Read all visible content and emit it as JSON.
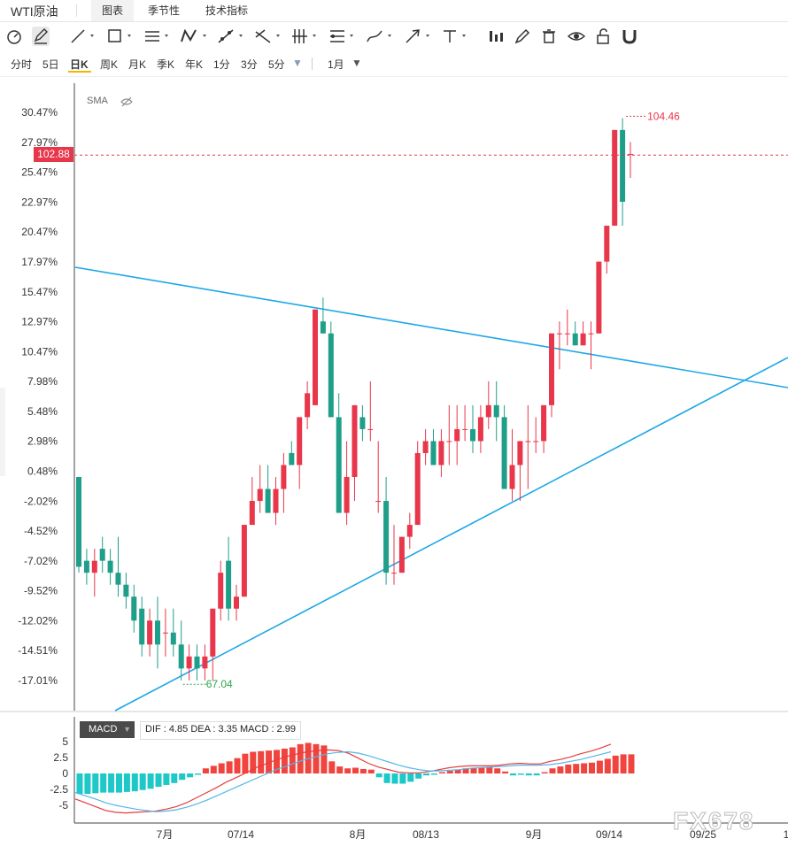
{
  "header": {
    "title": "WTI原油",
    "tabs": [
      "图表",
      "季节性",
      "技术指标"
    ],
    "active_tab": 0
  },
  "toolbar": {
    "icons": [
      "gauge-icon",
      "pen-icon",
      "line-icon",
      "rect-icon",
      "parallel-lines-icon",
      "zigzag-icon",
      "ray-icon",
      "cross-lines-icon",
      "vertical-lines-icon",
      "fib-icon",
      "brush-icon",
      "arrow-icon",
      "text-icon",
      "bar-chart-icon",
      "pencil-icon",
      "trash-icon",
      "eye-icon",
      "unlock-icon",
      "magnet-icon"
    ]
  },
  "periods": {
    "items": [
      "分时",
      "5日",
      "日K",
      "周K",
      "月K",
      "季K",
      "年K",
      "1分",
      "3分",
      "5分",
      "1月"
    ],
    "active": "日K"
  },
  "indicator": {
    "sma_label": "SMA",
    "macd_label": "MACD",
    "macd_values": "DIF : 4.85  DEA : 3.35  MACD : 2.99"
  },
  "price_tag": "102.88",
  "watermark": "FX678",
  "colors": {
    "up": "#e8364a",
    "down": "#1f9e89",
    "trendline": "#1ea7e6",
    "macd_pos": "#f0443f",
    "macd_neg": "#1cc8c8",
    "dif": "#e83c3c",
    "dea": "#52b7e8",
    "price_line": "#e8364a",
    "low_mark": "#2aa84a"
  },
  "chart_data": {
    "type": "candlestick",
    "y_axis_labels": [
      "30.47%",
      "27.97%",
      "25.47%",
      "22.97%",
      "20.47%",
      "17.97%",
      "15.47%",
      "12.97%",
      "10.47%",
      "7.98%",
      "5.48%",
      "2.98%",
      "0.48%",
      "-2.02%",
      "-4.52%",
      "-7.02%",
      "-9.52%",
      "-12.02%",
      "-14.51%",
      "-17.01%"
    ],
    "x_axis_labels": [
      "7月",
      "07/14",
      "8月",
      "08/13",
      "9月",
      "09/14",
      "09/25",
      "1"
    ],
    "annotations": {
      "high": "104.46",
      "low": "67.04",
      "last": "102.88"
    },
    "ohlc_pct": [
      [
        0,
        -4,
        -8,
        -7.5
      ],
      [
        -7,
        -6,
        -9,
        -8
      ],
      [
        -8,
        -6,
        -10,
        -7
      ],
      [
        -6,
        -5,
        -8,
        -7
      ],
      [
        -7,
        -6,
        -9,
        -8
      ],
      [
        -8,
        -5,
        -10,
        -9
      ],
      [
        -9,
        -8,
        -11,
        -10
      ],
      [
        -10,
        -9,
        -13,
        -12
      ],
      [
        -11,
        -10,
        -15,
        -14
      ],
      [
        -14,
        -11,
        -15,
        -12
      ],
      [
        -12,
        -10,
        -16,
        -14
      ],
      [
        -13,
        -11,
        -15,
        -13
      ],
      [
        -13,
        -11,
        -15,
        -14
      ],
      [
        -14,
        -12,
        -17,
        -16
      ],
      [
        -16,
        -14,
        -17,
        -15
      ],
      [
        -15,
        -14,
        -17,
        -16
      ],
      [
        -16,
        -14,
        -17,
        -15
      ],
      [
        -15,
        -11,
        -17,
        -11
      ],
      [
        -11,
        -7,
        -12,
        -8
      ],
      [
        -7,
        -5,
        -12,
        -11
      ],
      [
        -11,
        -9,
        -12,
        -10
      ],
      [
        -10,
        -4,
        -10,
        -4
      ],
      [
        -4,
        0,
        -4,
        -2
      ],
      [
        -2,
        1,
        -3,
        -1
      ],
      [
        -1,
        1,
        -3,
        -3
      ],
      [
        -3,
        0,
        -4,
        -1
      ],
      [
        -1,
        2,
        -3,
        1
      ],
      [
        2,
        3,
        1,
        1
      ],
      [
        1,
        5,
        -1,
        5
      ],
      [
        5,
        8,
        4,
        7
      ],
      [
        6,
        14,
        6,
        14
      ],
      [
        13,
        15,
        12,
        12
      ],
      [
        12,
        13,
        5,
        5
      ],
      [
        5,
        7,
        -2,
        -3
      ],
      [
        -3,
        3,
        -4,
        0
      ],
      [
        0,
        6,
        -2,
        6
      ],
      [
        5,
        6,
        3,
        4
      ],
      [
        4,
        8,
        3,
        4
      ],
      [
        -2,
        3,
        -3,
        -2
      ],
      [
        -2,
        0,
        -9,
        -8
      ],
      [
        -8,
        -4,
        -9,
        -8
      ],
      [
        -8,
        -5,
        -8,
        -5
      ],
      [
        -5,
        -3,
        -6,
        -4
      ],
      [
        -4,
        3,
        -4,
        2
      ],
      [
        2,
        4,
        1,
        3
      ],
      [
        3,
        4,
        2,
        1
      ],
      [
        1,
        4,
        0,
        3
      ],
      [
        3,
        6,
        1,
        3
      ],
      [
        3,
        6,
        1,
        4
      ],
      [
        4,
        6,
        3,
        4
      ],
      [
        4,
        6,
        2,
        3
      ],
      [
        3,
        6,
        2,
        5
      ],
      [
        5,
        8,
        4,
        6
      ],
      [
        6,
        8,
        3,
        5
      ],
      [
        5,
        6,
        -1,
        -1
      ],
      [
        -1,
        4,
        -2,
        1
      ],
      [
        1,
        3,
        -2,
        3
      ],
      [
        3,
        6,
        -1,
        3
      ],
      [
        3,
        5,
        2,
        3
      ],
      [
        3,
        5,
        2,
        6
      ],
      [
        6,
        12,
        5,
        12
      ],
      [
        12,
        13,
        9,
        12
      ],
      [
        12,
        14,
        11,
        12
      ],
      [
        12,
        13,
        11,
        11
      ],
      [
        11,
        13,
        11,
        12
      ],
      [
        12,
        13,
        9,
        12
      ],
      [
        12,
        18,
        12,
        18
      ],
      [
        18,
        21,
        17,
        21
      ],
      [
        21,
        29,
        21,
        29
      ],
      [
        29,
        30,
        21,
        23
      ],
      [
        27,
        28,
        25,
        27
      ]
    ]
  }
}
